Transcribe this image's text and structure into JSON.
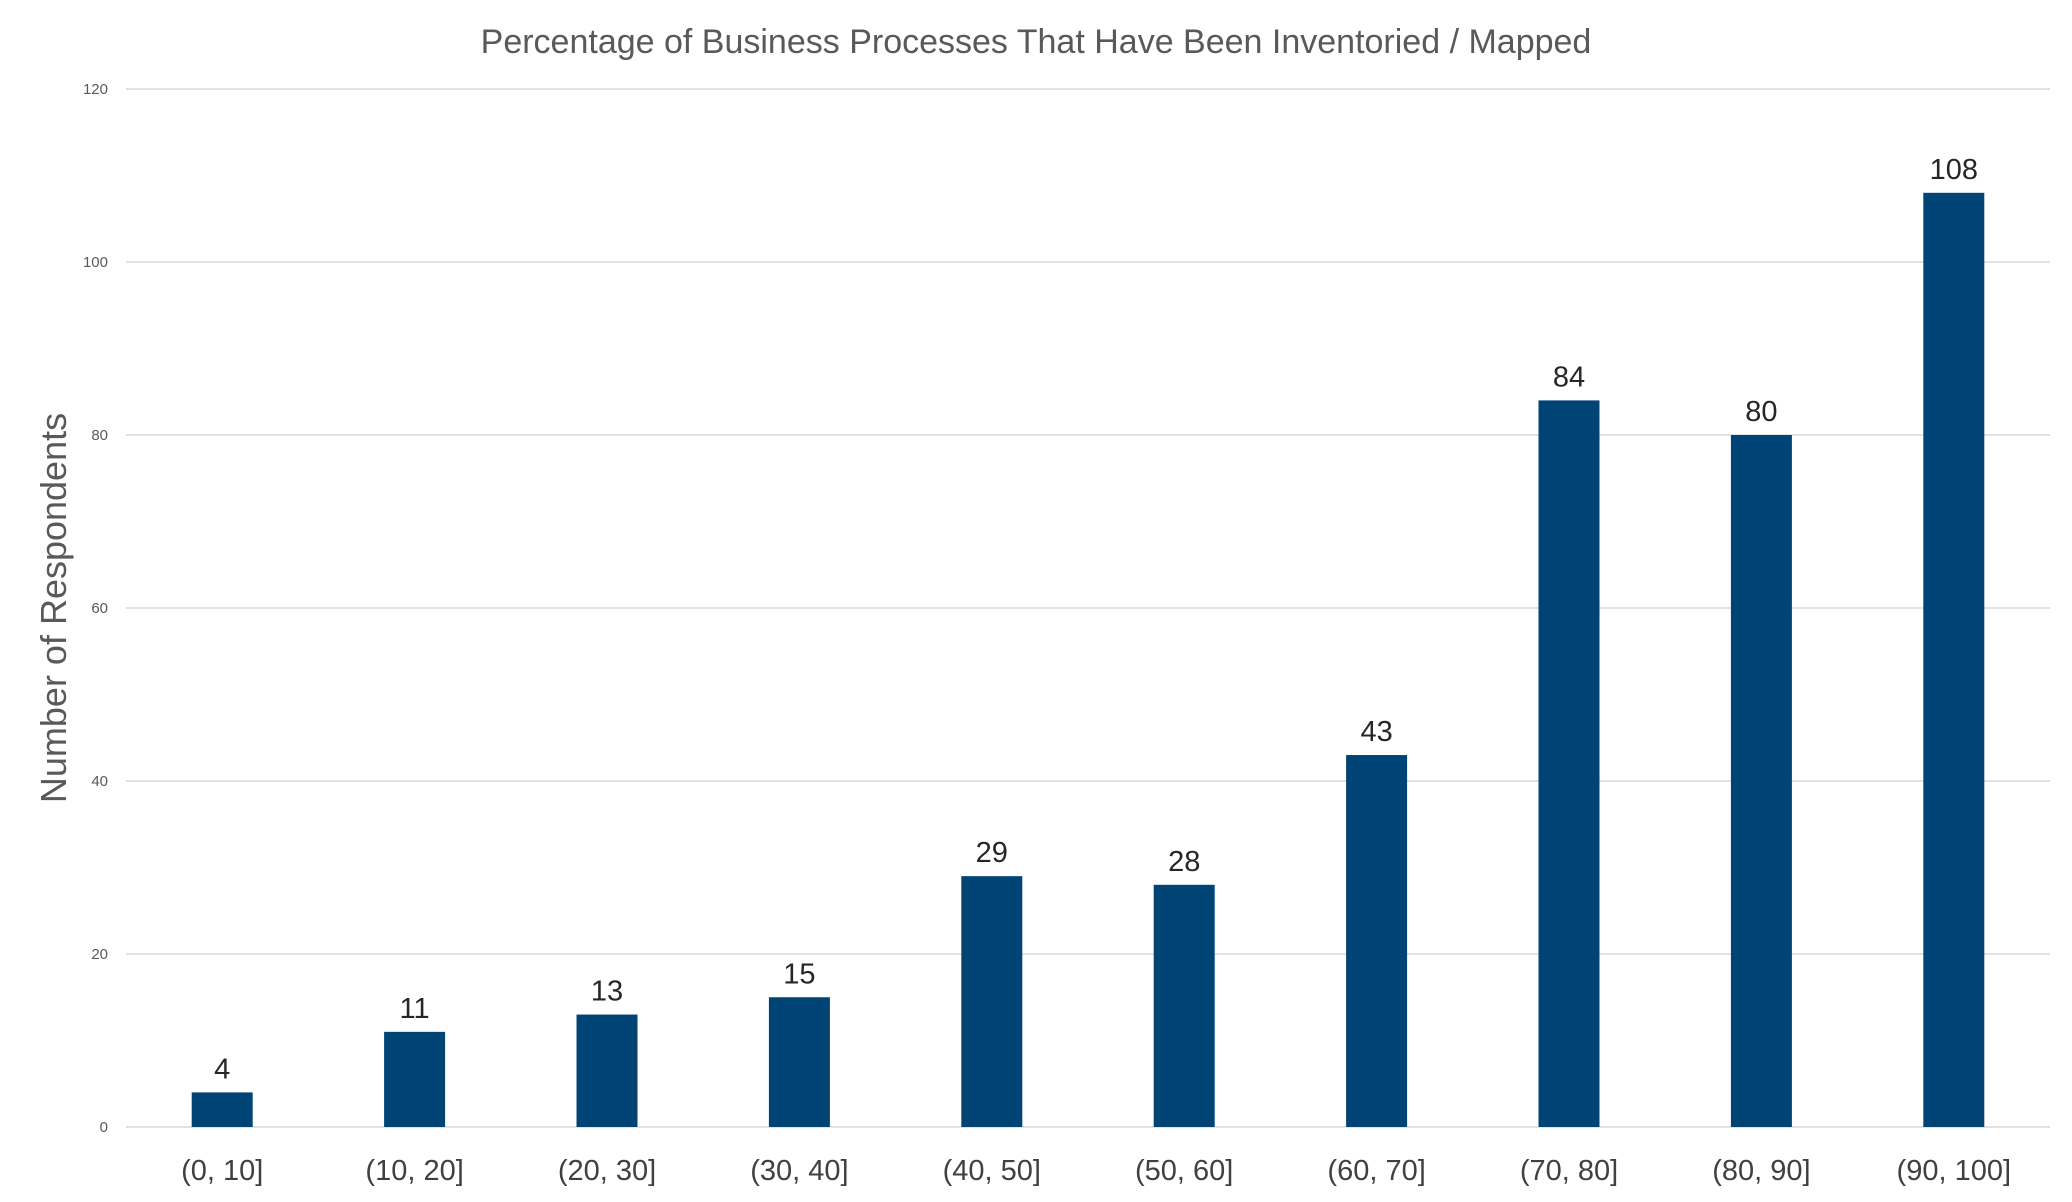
{
  "chart_data": {
    "type": "bar",
    "title": "Percentage of Business Processes That Have Been Inventoried / Mapped",
    "xlabel": "",
    "ylabel": "Number of Respondents",
    "categories": [
      "(0, 10]",
      "(10, 20]",
      "(20, 30]",
      "(30, 40]",
      "(40, 50]",
      "(50, 60]",
      "(60, 70]",
      "(70, 80]",
      "(80, 90]",
      "(90, 100]"
    ],
    "values": [
      4,
      11,
      13,
      15,
      29,
      28,
      43,
      84,
      80,
      108
    ],
    "ylim": [
      0,
      120
    ],
    "yticks": [
      "0",
      "20",
      "40",
      "60",
      "80",
      "100",
      "120"
    ],
    "grid": true,
    "legend": "none",
    "colors": {
      "bar": "#004475",
      "gridline": "#d9d9d9",
      "text": "#595959"
    }
  }
}
